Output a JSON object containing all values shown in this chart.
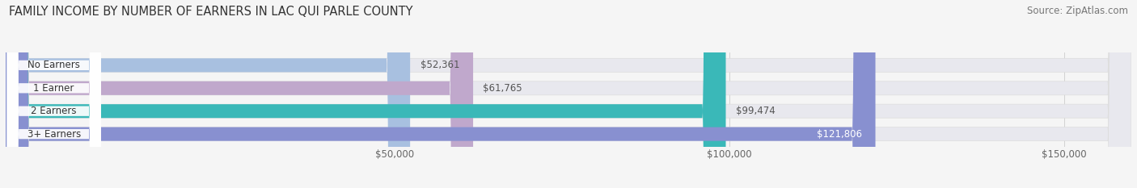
{
  "title": "FAMILY INCOME BY NUMBER OF EARNERS IN LAC QUI PARLE COUNTY",
  "source": "Source: ZipAtlas.com",
  "categories": [
    "No Earners",
    "1 Earner",
    "2 Earners",
    "3+ Earners"
  ],
  "values": [
    52361,
    61765,
    99474,
    121806
  ],
  "bar_colors": [
    "#a8c0e0",
    "#c0a8cc",
    "#3ab8b8",
    "#8890d0"
  ],
  "bar_labels": [
    "$52,361",
    "$61,765",
    "$99,474",
    "$121,806"
  ],
  "label_inside": [
    false,
    false,
    false,
    true
  ],
  "xlim_min": -8000,
  "xlim_max": 160000,
  "xticks": [
    50000,
    100000,
    150000
  ],
  "xtick_labels": [
    "$50,000",
    "$100,000",
    "$150,000"
  ],
  "background_color": "#f5f5f5",
  "bar_bg_color": "#e8e8ee",
  "title_fontsize": 10.5,
  "label_fontsize": 8.5,
  "source_fontsize": 8.5,
  "bar_height": 0.6,
  "value_label_inside_color": "white",
  "value_label_outside_color": "#555555"
}
